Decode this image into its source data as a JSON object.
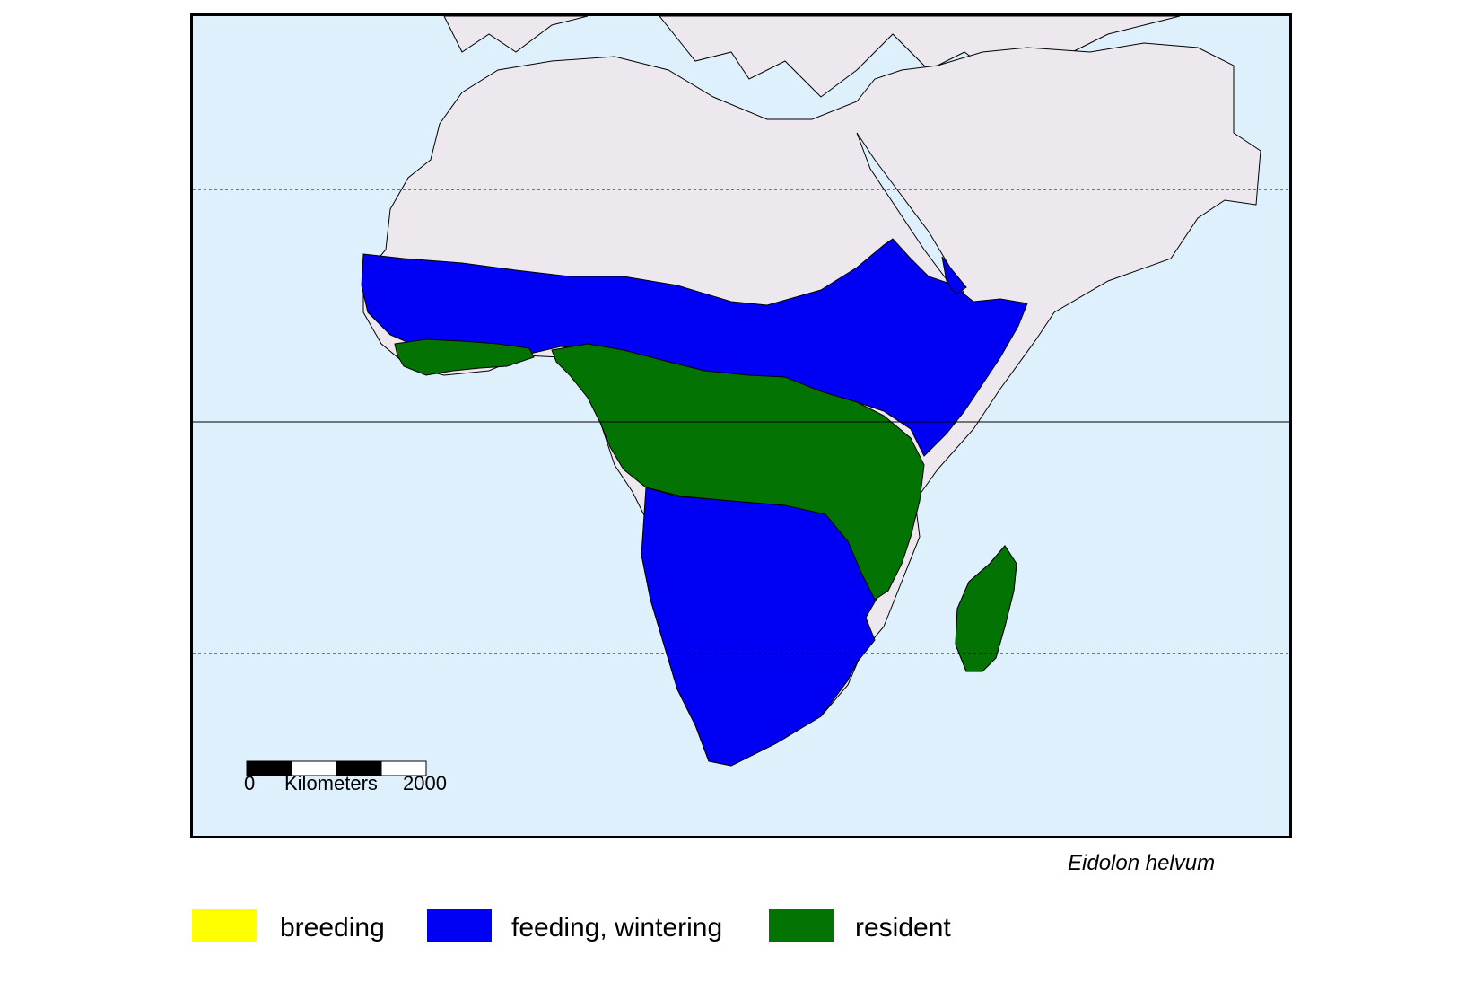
{
  "scale": {
    "start": "0",
    "unit": "Kilometers",
    "end": "2000"
  },
  "species": "Eidolon helvum",
  "colors": {
    "ocean": "#dff0fd",
    "land": "#ede8ed",
    "breeding": "#ffff00",
    "feeding": "#0000f5",
    "resident": "#037303"
  },
  "legend": [
    {
      "label": "breeding",
      "color": "#ffff00"
    },
    {
      "label": "feeding, wintering",
      "color": "#0000f5"
    },
    {
      "label": "resident",
      "color": "#037303"
    }
  ]
}
